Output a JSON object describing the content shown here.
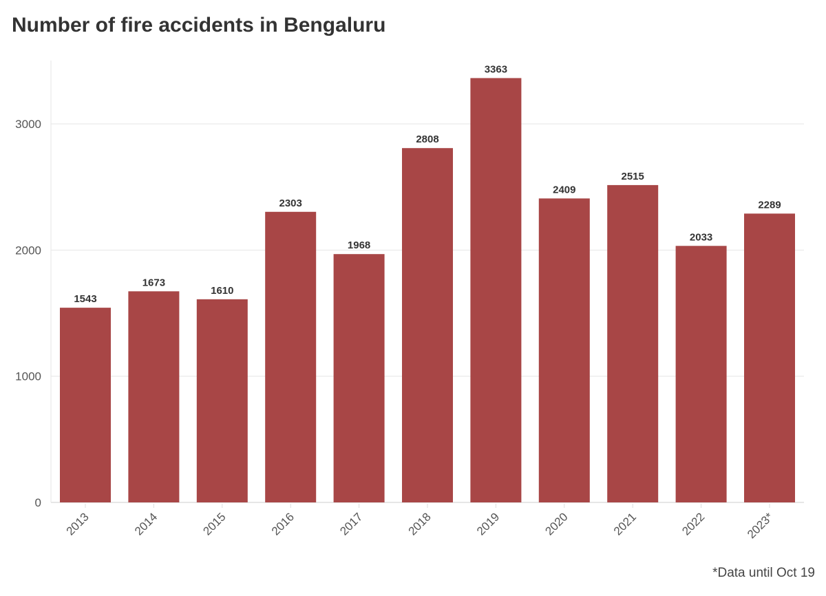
{
  "chart_data": {
    "type": "bar",
    "title": "Number of fire accidents in Bengaluru",
    "categories": [
      "2013",
      "2014",
      "2015",
      "2016",
      "2017",
      "2018",
      "2019",
      "2020",
      "2021",
      "2022",
      "2023*"
    ],
    "values": [
      1543,
      1673,
      1610,
      2303,
      1968,
      2808,
      3363,
      2409,
      2515,
      2033,
      2289
    ],
    "xlabel": "",
    "ylabel": "",
    "ylim": [
      0,
      3500
    ],
    "yticks": [
      0,
      1000,
      2000,
      3000
    ],
    "grid": true,
    "bar_color": "#a84646",
    "annotation": "*Data until Oct 19"
  }
}
